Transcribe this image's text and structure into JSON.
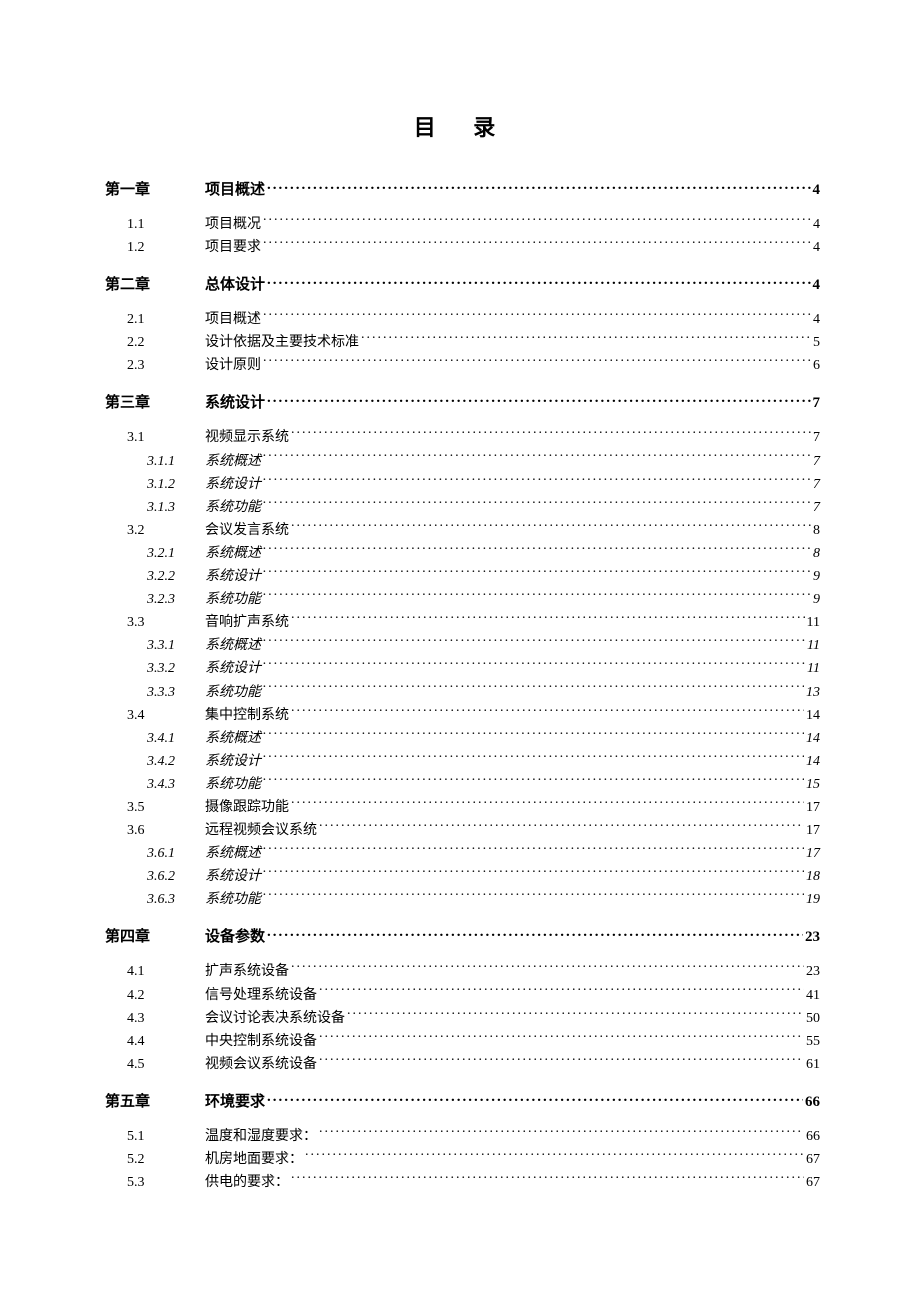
{
  "title": "目 录",
  "title_fontsize": 22,
  "colors": {
    "text": "#000000",
    "background": "#ffffff"
  },
  "typography": {
    "base_font": "SimSun",
    "italic_font": "KaiTi",
    "level1_fontsize": 15,
    "level2_fontsize": 14,
    "level3_fontsize": 14
  },
  "entries": [
    {
      "level": 1,
      "num": "第一章",
      "title": "项目概述",
      "page": "4"
    },
    {
      "level": 2,
      "num": "1.1",
      "title": "项目概况",
      "page": "4"
    },
    {
      "level": 2,
      "num": "1.2",
      "title": "项目要求",
      "page": "4"
    },
    {
      "level": 1,
      "num": "第二章",
      "title": "总体设计",
      "page": "4"
    },
    {
      "level": 2,
      "num": "2.1",
      "title": "项目概述",
      "page": "4"
    },
    {
      "level": 2,
      "num": "2.2",
      "title": "设计依据及主要技术标准",
      "page": "5"
    },
    {
      "level": 2,
      "num": "2.3",
      "title": "设计原则",
      "page": "6"
    },
    {
      "level": 1,
      "num": "第三章",
      "title": "系统设计",
      "page": "7"
    },
    {
      "level": 2,
      "num": "3.1",
      "title": "视频显示系统",
      "page": "7"
    },
    {
      "level": 3,
      "num": "3.1.1",
      "title": "系统概述",
      "page": "7"
    },
    {
      "level": 3,
      "num": "3.1.2",
      "title": "系统设计",
      "page": "7"
    },
    {
      "level": 3,
      "num": "3.1.3",
      "title": "系统功能",
      "page": "7"
    },
    {
      "level": 2,
      "num": "3.2",
      "title": "会议发言系统",
      "page": "8"
    },
    {
      "level": 3,
      "num": "3.2.1",
      "title": "系统概述",
      "page": "8"
    },
    {
      "level": 3,
      "num": "3.2.2",
      "title": "系统设计",
      "page": "9"
    },
    {
      "level": 3,
      "num": "3.2.3",
      "title": "系统功能",
      "page": "9"
    },
    {
      "level": 2,
      "num": "3.3",
      "title": "音响扩声系统",
      "page": "11"
    },
    {
      "level": 3,
      "num": "3.3.1",
      "title": "系统概述",
      "page": "11"
    },
    {
      "level": 3,
      "num": "3.3.2",
      "title": "系统设计",
      "page": "11"
    },
    {
      "level": 3,
      "num": "3.3.3",
      "title": "系统功能",
      "page": "13"
    },
    {
      "level": 2,
      "num": "3.4",
      "title": "集中控制系统",
      "page": "14"
    },
    {
      "level": 3,
      "num": "3.4.1",
      "title": "系统概述",
      "page": "14"
    },
    {
      "level": 3,
      "num": "3.4.2",
      "title": "系统设计",
      "page": "14"
    },
    {
      "level": 3,
      "num": "3.4.3",
      "title": "系统功能",
      "page": "15"
    },
    {
      "level": 2,
      "num": "3.5",
      "title": "摄像跟踪功能",
      "page": "17"
    },
    {
      "level": 2,
      "num": "3.6",
      "title": "远程视频会议系统",
      "page": "17"
    },
    {
      "level": 3,
      "num": "3.6.1",
      "title": "系统概述",
      "page": "17"
    },
    {
      "level": 3,
      "num": "3.6.2",
      "title": "系统设计",
      "page": "18"
    },
    {
      "level": 3,
      "num": "3.6.3",
      "title": "系统功能",
      "page": "19"
    },
    {
      "level": 1,
      "num": "第四章",
      "title": "设备参数",
      "page": "23"
    },
    {
      "level": 2,
      "num": "4.1",
      "title": "扩声系统设备",
      "page": "23"
    },
    {
      "level": 2,
      "num": "4.2",
      "title": "信号处理系统设备",
      "page": "41"
    },
    {
      "level": 2,
      "num": "4.3",
      "title": "会议讨论表决系统设备",
      "page": "50"
    },
    {
      "level": 2,
      "num": "4.4",
      "title": "中央控制系统设备",
      "page": "55"
    },
    {
      "level": 2,
      "num": "4.5",
      "title": "视频会议系统设备",
      "page": "61"
    },
    {
      "level": 1,
      "num": "第五章",
      "title": "环境要求",
      "page": "66"
    },
    {
      "level": 2,
      "num": "5.1",
      "title": "温度和湿度要求：",
      "page": "66"
    },
    {
      "level": 2,
      "num": "5.2",
      "title": "机房地面要求：",
      "page": "67"
    },
    {
      "level": 2,
      "num": "5.3",
      "title": "供电的要求：",
      "page": "67"
    }
  ]
}
